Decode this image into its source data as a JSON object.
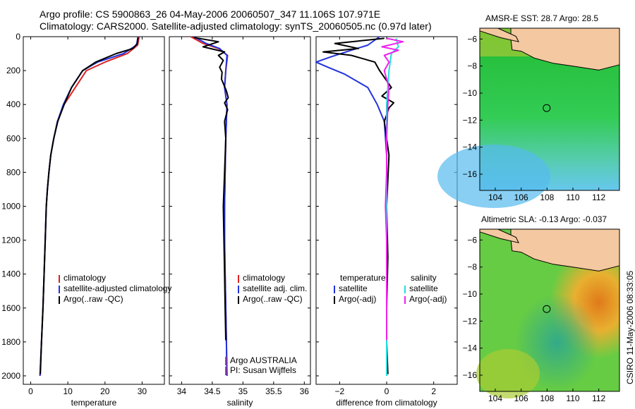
{
  "header": {
    "line1": "Argo profile: CS 5900863_26 04-May-2006 20060507_347 11.106S 107.971E",
    "line2": "Climatology: CARS2000. Satellite-adjusted climatology: synTS_20060505.nc (0.97d later)"
  },
  "credit": "CSIRO 11-May-2006 08:33:05",
  "colors": {
    "clim": "#dd2222",
    "sat": "#2233dd",
    "argo": "#000000",
    "sat_sal": "#22dddd",
    "argo_sal": "#ee22ee"
  },
  "chart_data": [
    {
      "type": "line",
      "name": "temperature-panel",
      "xlabel": "temperature",
      "ylabel": "",
      "xlim": [
        -2,
        36
      ],
      "ylim": [
        2050,
        0
      ],
      "xticks": [
        0,
        10,
        20,
        30
      ],
      "yticks": [
        0,
        200,
        400,
        600,
        800,
        1000,
        1200,
        1400,
        1600,
        1800,
        2000
      ],
      "legend": [
        "climatology",
        "satellite-adjusted climatology",
        "Argo(..raw -QC)"
      ],
      "series": [
        {
          "name": "climatology",
          "color_key": "clim",
          "points": [
            [
              29.2,
              0
            ],
            [
              28.8,
              50
            ],
            [
              26,
              100
            ],
            [
              20,
              150
            ],
            [
              15,
              200
            ],
            [
              12,
              300
            ],
            [
              9,
              400
            ],
            [
              7.2,
              500
            ],
            [
              6.2,
              600
            ],
            [
              5.4,
              700
            ],
            [
              4.9,
              800
            ],
            [
              4.5,
              900
            ],
            [
              4.2,
              1000
            ],
            [
              3.9,
              1200
            ],
            [
              3.6,
              1400
            ],
            [
              3.3,
              1600
            ],
            [
              2.9,
              1800
            ],
            [
              2.5,
              2000
            ]
          ]
        },
        {
          "name": "satellite-adjusted climatology",
          "color_key": "sat",
          "points": [
            [
              28.9,
              0
            ],
            [
              28.5,
              50
            ],
            [
              25,
              100
            ],
            [
              18,
              150
            ],
            [
              14,
              200
            ],
            [
              11,
              300
            ],
            [
              8.8,
              400
            ],
            [
              7.2,
              500
            ],
            [
              6.2,
              600
            ],
            [
              5.4,
              700
            ],
            [
              4.9,
              800
            ],
            [
              4.5,
              900
            ],
            [
              4.2,
              1000
            ],
            [
              3.9,
              1200
            ],
            [
              3.6,
              1400
            ],
            [
              3.3,
              1600
            ],
            [
              2.9,
              1800
            ],
            [
              2.5,
              2000
            ]
          ]
        },
        {
          "name": "Argo(..raw -QC)",
          "color_key": "argo",
          "points": [
            [
              28.9,
              5
            ],
            [
              28.7,
              40
            ],
            [
              27.5,
              70
            ],
            [
              23,
              100
            ],
            [
              17.5,
              150
            ],
            [
              14,
              200
            ],
            [
              11,
              300
            ],
            [
              9,
              400
            ],
            [
              7.3,
              500
            ],
            [
              6.2,
              600
            ],
            [
              5.4,
              700
            ],
            [
              4.9,
              800
            ],
            [
              4.5,
              900
            ],
            [
              4.2,
              1000
            ],
            [
              3.9,
              1200
            ],
            [
              3.6,
              1400
            ],
            [
              3.3,
              1600
            ],
            [
              2.9,
              1800
            ],
            [
              2.6,
              1990
            ]
          ]
        }
      ]
    },
    {
      "type": "line",
      "name": "salinity-panel",
      "xlabel": "salinity",
      "ylabel": "",
      "xlim": [
        33.8,
        36.1
      ],
      "ylim": [
        2050,
        0
      ],
      "xticks": [
        34,
        34.5,
        35,
        35.5,
        36
      ],
      "legend": [
        "climatology",
        "satellite adj. clim.",
        "Argo(..raw -QC)"
      ],
      "annotations": [
        "Argo AUSTRALIA",
        "PI: Susan Wijffels"
      ],
      "series": [
        {
          "name": "climatology",
          "color_key": "clim",
          "points": [
            [
              34.15,
              0
            ],
            [
              34.35,
              40
            ],
            [
              34.6,
              70
            ],
            [
              34.75,
              110
            ],
            [
              34.72,
              200
            ],
            [
              34.7,
              300
            ],
            [
              34.74,
              400
            ],
            [
              34.72,
              600
            ],
            [
              34.71,
              800
            ],
            [
              34.7,
              1000
            ],
            [
              34.7,
              1200
            ],
            [
              34.71,
              1400
            ],
            [
              34.72,
              1600
            ],
            [
              34.73,
              1800
            ],
            [
              34.74,
              2000
            ]
          ]
        },
        {
          "name": "satellite adj. clim.",
          "color_key": "sat",
          "points": [
            [
              34.2,
              0
            ],
            [
              34.4,
              40
            ],
            [
              34.62,
              70
            ],
            [
              34.74,
              110
            ],
            [
              34.72,
              200
            ],
            [
              34.7,
              300
            ],
            [
              34.74,
              400
            ],
            [
              34.72,
              600
            ],
            [
              34.71,
              800
            ],
            [
              34.7,
              1000
            ],
            [
              34.7,
              1200
            ],
            [
              34.71,
              1400
            ],
            [
              34.72,
              1600
            ],
            [
              34.73,
              1800
            ],
            [
              34.74,
              2000
            ]
          ]
        },
        {
          "name": "Argo(..raw -QC)",
          "color_key": "argo",
          "points": [
            [
              34.2,
              5
            ],
            [
              34.6,
              30
            ],
            [
              34.35,
              60
            ],
            [
              34.7,
              90
            ],
            [
              34.6,
              110
            ],
            [
              34.68,
              140
            ],
            [
              34.62,
              180
            ],
            [
              34.66,
              210
            ],
            [
              34.65,
              250
            ],
            [
              34.73,
              320
            ],
            [
              34.76,
              360
            ],
            [
              34.7,
              390
            ],
            [
              34.75,
              430
            ],
            [
              34.7,
              500
            ],
            [
              34.72,
              600
            ],
            [
              34.7,
              800
            ],
            [
              34.68,
              1000
            ],
            [
              34.69,
              1200
            ],
            [
              34.7,
              1400
            ],
            [
              34.71,
              1600
            ],
            [
              34.72,
              1790
            ]
          ]
        }
      ]
    },
    {
      "type": "line",
      "name": "difference-panel",
      "xlabel": "difference from climatology",
      "ylabel": "",
      "xlim": [
        -3,
        3
      ],
      "ylim": [
        2050,
        0
      ],
      "xticks": [
        -2,
        0,
        2
      ],
      "legend": [
        "temperature",
        "satellite",
        "Argo(-adj)",
        "salinity",
        "satellite",
        "Argo(-adj)"
      ],
      "series": [
        {
          "name": "temperature satellite",
          "color_key": "sat",
          "points": [
            [
              -0.3,
              0
            ],
            [
              -0.8,
              50
            ],
            [
              -1.5,
              80
            ],
            [
              -2.4,
              120
            ],
            [
              -3.0,
              150
            ],
            [
              -2.5,
              180
            ],
            [
              -1.8,
              220
            ],
            [
              -0.8,
              300
            ],
            [
              -0.4,
              400
            ],
            [
              -0.1,
              500
            ],
            [
              0,
              700
            ],
            [
              0,
              1000
            ],
            [
              0,
              1500
            ],
            [
              0,
              2000
            ]
          ]
        },
        {
          "name": "temperature Argo(-adj)",
          "color_key": "argo",
          "points": [
            [
              -0.1,
              10
            ],
            [
              -2.2,
              40
            ],
            [
              -1.2,
              70
            ],
            [
              -2.7,
              90
            ],
            [
              -1.5,
              110
            ],
            [
              -0.5,
              150
            ],
            [
              -0.3,
              200
            ],
            [
              0.2,
              300
            ],
            [
              -0.2,
              350
            ],
            [
              0.3,
              390
            ],
            [
              0.1,
              420
            ],
            [
              -0.1,
              500
            ],
            [
              0.1,
              700
            ],
            [
              0,
              1000
            ],
            [
              0.05,
              1300
            ],
            [
              0,
              1600
            ],
            [
              0,
              1800
            ],
            [
              0.05,
              1990
            ]
          ]
        },
        {
          "name": "salinity satellite",
          "color_key": "sat_sal",
          "points": [
            [
              0.4,
              10
            ],
            [
              0.5,
              60
            ],
            [
              0.2,
              100
            ],
            [
              0.1,
              200
            ],
            [
              0,
              400
            ],
            [
              0,
              1000
            ],
            [
              0,
              2000
            ]
          ]
        },
        {
          "name": "salinity Argo(-adj)",
          "color_key": "argo_sal",
          "points": [
            [
              0,
              10
            ],
            [
              0.7,
              30
            ],
            [
              -0.2,
              60
            ],
            [
              0.5,
              80
            ],
            [
              -0.1,
              110
            ],
            [
              0.1,
              150
            ],
            [
              -0.1,
              200
            ],
            [
              0.1,
              300
            ],
            [
              0.05,
              400
            ],
            [
              0,
              600
            ],
            [
              0,
              800
            ],
            [
              -0.05,
              1000
            ],
            [
              0,
              1200
            ],
            [
              0,
              1400
            ],
            [
              0,
              1790
            ]
          ]
        }
      ]
    }
  ],
  "maps": [
    {
      "title": "AMSR-E SST: 28.7 Argo: 28.5",
      "xticks": [
        104,
        106,
        108,
        110,
        112
      ],
      "yticks": [
        -6,
        -8,
        -10,
        -12,
        -14,
        -16
      ],
      "xlim": [
        102.8,
        113.6
      ],
      "ylim": [
        -17.2,
        -5.2
      ],
      "marker": [
        107.971,
        -11.106
      ]
    },
    {
      "title": "Altimetric SLA: -0.13 Argo: -0.037",
      "xticks": [
        104,
        106,
        108,
        110,
        112
      ],
      "yticks": [
        -6,
        -8,
        -10,
        -12,
        -14,
        -16
      ],
      "xlim": [
        102.8,
        113.6
      ],
      "ylim": [
        -17.2,
        -5.2
      ],
      "marker": [
        107.971,
        -11.106
      ]
    }
  ]
}
